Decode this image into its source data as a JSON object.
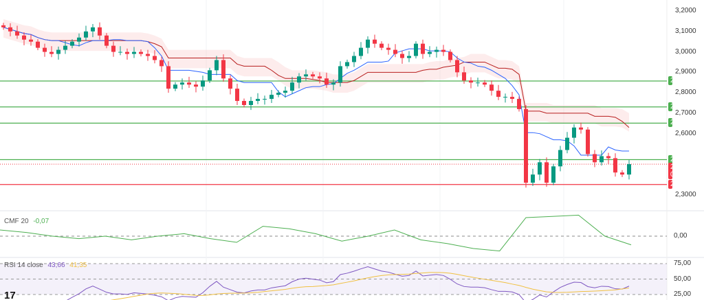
{
  "chart_data": {
    "type": "candlestick",
    "price_axis": {
      "min": 2.3,
      "max": 3.2,
      "ticks": [
        "3,2000",
        "3,1000",
        "3,0000",
        "2,9000",
        "2,8000",
        "2,7000",
        "2,6000",
        "2,3000"
      ],
      "tick_values": [
        3.2,
        3.1,
        3.0,
        2.9,
        2.8,
        2.7,
        2.6,
        2.3
      ]
    },
    "closes": [
      3.12,
      3.1,
      3.08,
      3.06,
      3.05,
      3.02,
      3.0,
      2.99,
      3.01,
      3.03,
      3.05,
      3.07,
      3.1,
      3.12,
      3.08,
      3.03,
      3.0,
      3.0,
      2.99,
      3.0,
      2.99,
      2.98,
      2.96,
      2.93,
      2.82,
      2.84,
      2.85,
      2.84,
      2.83,
      2.86,
      2.91,
      2.96,
      2.87,
      2.82,
      2.76,
      2.74,
      2.76,
      2.77,
      2.77,
      2.79,
      2.8,
      2.81,
      2.85,
      2.88,
      2.89,
      2.88,
      2.87,
      2.84,
      2.85,
      2.93,
      2.95,
      2.98,
      3.02,
      3.06,
      3.04,
      3.02,
      3.01,
      2.99,
      2.97,
      2.98,
      3.04,
      2.99,
      3.0,
      3.01,
      3.0,
      2.96,
      2.9,
      2.86,
      2.85,
      2.85,
      2.84,
      2.81,
      2.78,
      2.78,
      2.77,
      2.72,
      2.36,
      2.4,
      2.46,
      2.36,
      2.44,
      2.52,
      2.58,
      2.63,
      2.62,
      2.5,
      2.46,
      2.49,
      2.48,
      2.41,
      2.4,
      2.4508
    ],
    "levels": [
      {
        "value": 2.8576,
        "label": "2,8576",
        "color": "#4caf50"
      },
      {
        "value": 2.7306,
        "label": "2,7306",
        "color": "#4caf50"
      },
      {
        "value": 2.6513,
        "label": "2,6513",
        "color": "#4caf50"
      },
      {
        "value": 2.473,
        "label": "2,4730",
        "color": "#4caf50"
      },
      {
        "value": 2.3512,
        "label": "2,3512",
        "color": "#f23645"
      }
    ],
    "current": {
      "value": 2.4508,
      "label": "2,4508",
      "countdown": "02:55:43",
      "color": "#f23645"
    },
    "colors": {
      "up": "#089981",
      "down": "#f23645",
      "tenkan": "#2962ff",
      "kijun": "#b71c1c"
    }
  },
  "cmf": {
    "name": "CMF 20",
    "value": "-0,07",
    "zero_label": "0,00",
    "values": [
      0.05,
      0.03,
      0.0,
      -0.02,
      0.0,
      -0.03,
      0.0,
      0.02,
      -0.02,
      -0.05,
      0.08,
      0.06,
      0.02,
      -0.04,
      0.0,
      0.05,
      -0.03,
      -0.06,
      -0.1,
      -0.12,
      0.15,
      0.16,
      0.17,
      0.0,
      -0.07
    ]
  },
  "rsi": {
    "name": "RSI 14 close",
    "value": "43,66",
    "ma_value": "41,35",
    "ticks": [
      "75,00",
      "50,00",
      "25,00"
    ]
  }
}
